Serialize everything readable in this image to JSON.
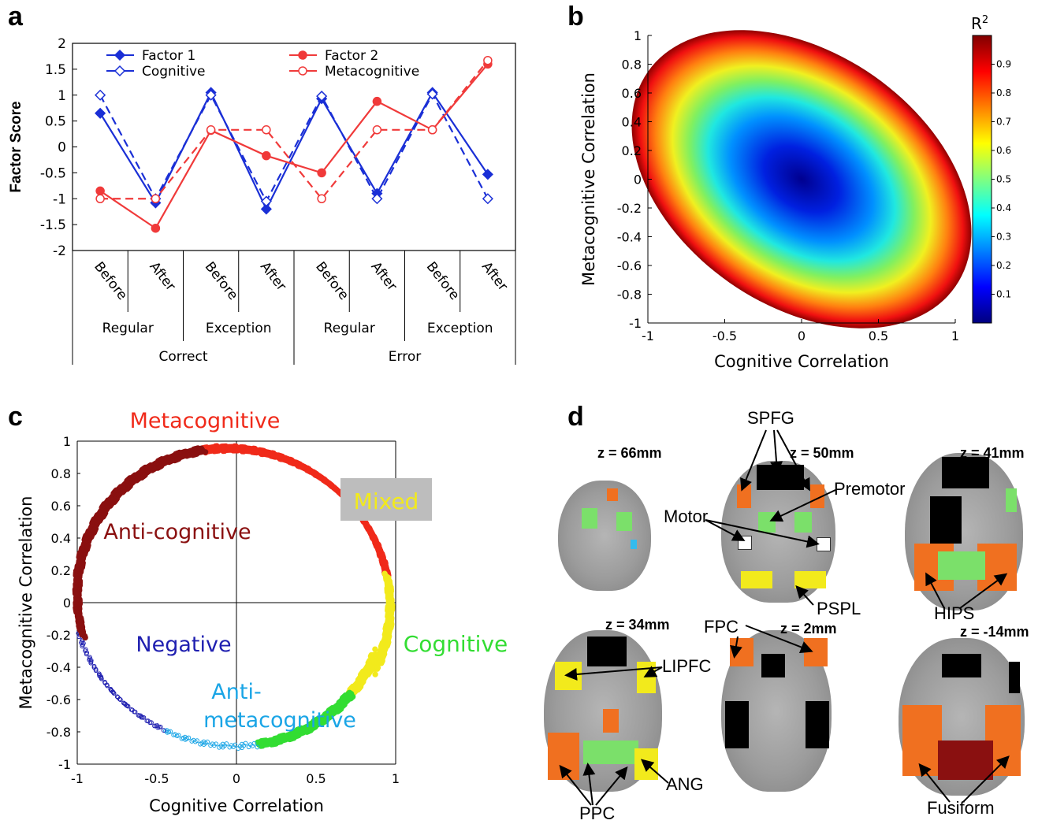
{
  "panels": {
    "a": "a",
    "b": "b",
    "c": "c",
    "d": "d"
  },
  "chart_data": [
    {
      "panel": "a",
      "type": "line",
      "ylabel": "Factor Score",
      "xlabel": "",
      "ylim": [
        -2,
        2
      ],
      "yticks": [
        "2",
        "1.5",
        "1",
        "0.5",
        "0",
        "-0.5",
        "-1",
        "-1.5",
        "-2"
      ],
      "categories": [
        "Before",
        "After",
        "Before",
        "After",
        "Before",
        "After",
        "Before",
        "After"
      ],
      "group_level1": [
        "Regular",
        "Exception",
        "Regular",
        "Exception"
      ],
      "group_level2": [
        "Correct",
        "Error"
      ],
      "legend_position": "top",
      "series": [
        {
          "name": "Factor 1",
          "color": "#1a2fd6",
          "style": "solid",
          "marker": "filled-diamond",
          "values": [
            0.65,
            -1.08,
            1.05,
            -1.2,
            0.93,
            -0.9,
            1.05,
            -0.53
          ]
        },
        {
          "name": "Cognitive",
          "color": "#1a2fd6",
          "style": "dashed",
          "marker": "open-diamond",
          "values": [
            1.0,
            -1.0,
            1.0,
            -1.05,
            0.98,
            -1.0,
            1.02,
            -1.0
          ]
        },
        {
          "name": "Factor 2",
          "color": "#f03a3a",
          "style": "solid",
          "marker": "filled-circle",
          "values": [
            -0.85,
            -1.57,
            0.32,
            -0.17,
            -0.5,
            0.88,
            0.33,
            1.6
          ]
        },
        {
          "name": "Metacognitive",
          "color": "#f03a3a",
          "style": "dashed",
          "marker": "open-circle",
          "values": [
            -1.0,
            -1.0,
            0.33,
            0.33,
            -1.0,
            0.33,
            0.33,
            1.67
          ]
        }
      ]
    },
    {
      "panel": "b",
      "type": "scatter",
      "xlabel": "Cognitive Correlation",
      "ylabel": "Metacognitive Correlation",
      "xlim": [
        -1,
        1
      ],
      "ylim": [
        -1,
        1
      ],
      "xticks": [
        "-1",
        "-0.5",
        "0",
        "0.5",
        "1"
      ],
      "yticks": [
        "1",
        "0.8",
        "0.6",
        "0.4",
        "0.2",
        "0",
        "-0.2",
        "-0.4",
        "-0.6",
        "-0.8",
        "-1"
      ],
      "colorbar_title": "R",
      "colorbar_title_sup": "2",
      "colorbar_ticks": [
        "0.9",
        "0.8",
        "0.7",
        "0.6",
        "0.5",
        "0.4",
        "0.3",
        "0.2",
        "0.1"
      ],
      "colorbar_range": [
        0,
        1
      ],
      "ellipse": {
        "center": [
          0,
          0
        ],
        "major_axis_direction": "negative diagonal"
      }
    },
    {
      "panel": "c",
      "type": "scatter",
      "xlabel": "Cognitive Correlation",
      "ylabel": "Metacognitive Correlation",
      "xlim": [
        -1,
        1
      ],
      "ylim": [
        -1,
        1
      ],
      "xticks": [
        "-1",
        "-0.5",
        "0",
        "0.5",
        "1"
      ],
      "yticks": [
        "1",
        "0.8",
        "0.6",
        "0.4",
        "0.2",
        "0",
        "-0.2",
        "-0.4",
        "-0.6",
        "-0.8",
        "-1"
      ],
      "regions": [
        {
          "label": "Metacognitive",
          "color": "#f02a1a"
        },
        {
          "label": "Mixed",
          "color": "#f2ea1c",
          "boxed": true
        },
        {
          "label": "Cognitive",
          "color": "#33dd33"
        },
        {
          "label": "Anti-",
          "label2": "metacognitive",
          "color": "#1aa5e6"
        },
        {
          "label": "Negative",
          "color": "#1f1fb0"
        },
        {
          "label": "Anti-cognitive",
          "color": "#8a1010"
        }
      ],
      "arc_segments": [
        {
          "region": "Metacognitive",
          "from_angle": 30,
          "to_angle": 120
        },
        {
          "region": "Mixed",
          "from_angle": -20,
          "to_angle": 30
        },
        {
          "region": "Cognitive",
          "from_angle": -60,
          "to_angle": -20
        },
        {
          "region": "Anti-metacognitive",
          "from_angle": -95,
          "to_angle": -60
        },
        {
          "region": "Negative",
          "from_angle": -145,
          "to_angle": -95
        },
        {
          "region": "Anti-cognitive",
          "from_angle": 120,
          "to_angle": 215
        }
      ]
    }
  ],
  "panel_d": {
    "slices": [
      {
        "z": "z = 66mm"
      },
      {
        "z": "z = 50mm"
      },
      {
        "z": "z = 41mm"
      },
      {
        "z": "z = 34mm"
      },
      {
        "z": "z = 2mm"
      },
      {
        "z": "z = -14mm"
      }
    ],
    "regions": [
      "SPFG",
      "Premotor",
      "Motor",
      "PSPL",
      "HIPS",
      "FPC",
      "LIPFC",
      "ANG",
      "PPC",
      "Fusiform"
    ]
  }
}
